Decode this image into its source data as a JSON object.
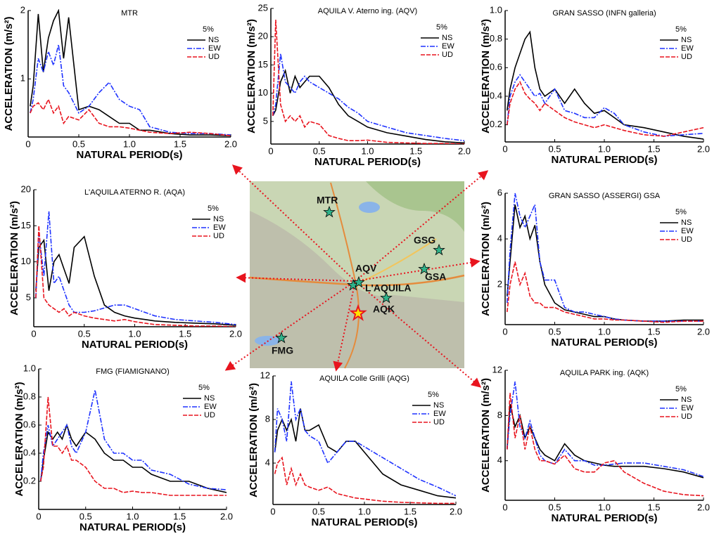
{
  "chart_data": [
    {
      "type": "line",
      "title": "MTR",
      "annotation": "5%",
      "x_label": "NATURAL PERIOD(s)",
      "y_label": "ACCELERATION (m/s²)",
      "x": [
        0.02,
        0.05,
        0.1,
        0.15,
        0.2,
        0.25,
        0.3,
        0.35,
        0.4,
        0.5,
        0.6,
        0.7,
        0.8,
        0.9,
        1.0,
        1.1,
        1.2,
        1.4,
        1.6,
        1.8,
        2.0
      ],
      "xlim": [
        0,
        2
      ],
      "xticks": [
        0,
        0.5,
        {
          "value": 1,
          "label": "1.0"
        },
        1.5,
        {
          "value": 2,
          "label": "2.0"
        }
      ],
      "ylim": [
        0.15,
        2
      ],
      "yticks": [
        1,
        2
      ],
      "series": [
        {
          "name": "NS",
          "color": "#000000",
          "style": "solid",
          "values": [
            0.6,
            0.9,
            1.95,
            1.1,
            1.6,
            1.85,
            2.0,
            1.3,
            1.9,
            0.55,
            0.6,
            0.55,
            0.45,
            0.35,
            0.35,
            0.25,
            0.25,
            0.2,
            0.18,
            0.18,
            0.17
          ]
        },
        {
          "name": "EW",
          "color": "#1e32ff",
          "style": "dashdot",
          "values": [
            0.5,
            0.7,
            1.3,
            1.1,
            1.4,
            1.2,
            1.5,
            0.9,
            0.8,
            0.5,
            0.6,
            0.8,
            0.95,
            0.7,
            0.6,
            0.55,
            0.3,
            0.22,
            0.2,
            0.2,
            0.18
          ]
        },
        {
          "name": "UD",
          "color": "#e8141e",
          "style": "dashed",
          "values": [
            0.5,
            0.6,
            0.65,
            0.55,
            0.7,
            0.5,
            0.6,
            0.35,
            0.45,
            0.4,
            0.55,
            0.35,
            0.3,
            0.3,
            0.28,
            0.25,
            0.22,
            0.2,
            0.22,
            0.2,
            0.17
          ]
        }
      ]
    },
    {
      "type": "line",
      "title": "AQUILA V. Aterno ing. (AQV)",
      "annotation": "5%",
      "x_label": "NATURAL PERIOD(s)",
      "y_label": "ACCELERATION (m/s²)",
      "x": [
        0.02,
        0.05,
        0.1,
        0.15,
        0.2,
        0.25,
        0.3,
        0.35,
        0.4,
        0.5,
        0.6,
        0.7,
        0.8,
        0.9,
        1.0,
        1.1,
        1.2,
        1.4,
        1.6,
        1.8,
        2.0
      ],
      "xlim": [
        0,
        2
      ],
      "xticks": [
        0,
        0.5,
        {
          "value": 1,
          "label": "1.0"
        },
        1.5,
        {
          "value": 2,
          "label": "2.0"
        }
      ],
      "ylim": [
        1,
        25
      ],
      "yticks": [
        5,
        10,
        15,
        20,
        25
      ],
      "series": [
        {
          "name": "NS",
          "color": "#000000",
          "style": "solid",
          "values": [
            6,
            7,
            12,
            14,
            10,
            13,
            11,
            12,
            13,
            13,
            11,
            8,
            6,
            5,
            4,
            3.5,
            3,
            2.4,
            1.8,
            1.4,
            1.2
          ]
        },
        {
          "name": "EW",
          "color": "#1e32ff",
          "style": "dashdot",
          "values": [
            6,
            8,
            17,
            12,
            11,
            10,
            12,
            13,
            12,
            11,
            10,
            9,
            7.5,
            6.5,
            5,
            4.5,
            4,
            3,
            2.5,
            2,
            1.6
          ]
        },
        {
          "name": "UD",
          "color": "#e8141e",
          "style": "dashed",
          "values": [
            6,
            23,
            8,
            5,
            6,
            5,
            6,
            4,
            5,
            4.5,
            2.5,
            2,
            1.6,
            1.6,
            1.7,
            1.5,
            1.3,
            1.2,
            1.1,
            1.1,
            1.0
          ]
        }
      ]
    },
    {
      "type": "line",
      "title": "GRAN SASSO (INFN galleria)",
      "annotation": "5%",
      "x_label": "NATURAL PERIOD(s)",
      "y_label": "ACCELERATION (m/s²)",
      "x": [
        0.02,
        0.05,
        0.1,
        0.15,
        0.2,
        0.25,
        0.3,
        0.35,
        0.4,
        0.5,
        0.6,
        0.7,
        0.8,
        0.9,
        1.0,
        1.1,
        1.2,
        1.4,
        1.6,
        1.8,
        2.0
      ],
      "xlim": [
        0,
        2
      ],
      "xticks": [
        0,
        0.5,
        {
          "value": 1,
          "label": "1.0"
        },
        1.5,
        {
          "value": 2,
          "label": "2.0"
        }
      ],
      "ylim": [
        0.08,
        1
      ],
      "yticks": [
        0.2,
        0.4,
        0.6,
        0.8,
        {
          "value": 1,
          "label": "1.0"
        }
      ],
      "series": [
        {
          "name": "NS",
          "color": "#000000",
          "style": "solid",
          "values": [
            0.3,
            0.45,
            0.6,
            0.7,
            0.8,
            0.85,
            0.6,
            0.45,
            0.4,
            0.45,
            0.35,
            0.45,
            0.35,
            0.28,
            0.3,
            0.25,
            0.2,
            0.18,
            0.15,
            0.12,
            0.1
          ]
        },
        {
          "name": "EW",
          "color": "#1e32ff",
          "style": "dashdot",
          "values": [
            0.2,
            0.4,
            0.5,
            0.55,
            0.5,
            0.45,
            0.4,
            0.42,
            0.35,
            0.45,
            0.3,
            0.28,
            0.25,
            0.25,
            0.32,
            0.28,
            0.2,
            0.15,
            0.12,
            0.13,
            0.14
          ]
        },
        {
          "name": "UD",
          "color": "#e8141e",
          "style": "dashed",
          "values": [
            0.2,
            0.35,
            0.45,
            0.5,
            0.42,
            0.38,
            0.35,
            0.3,
            0.35,
            0.3,
            0.25,
            0.22,
            0.2,
            0.18,
            0.2,
            0.18,
            0.16,
            0.13,
            0.12,
            0.15,
            0.18
          ]
        }
      ]
    },
    {
      "type": "line",
      "title": "L'AQUILA ATERNO R. (AQA)",
      "annotation": "5%",
      "x_label": "NATURAL PERIOD(s)",
      "y_label": "ACCELERATION (m/s²)",
      "x": [
        0.02,
        0.05,
        0.1,
        0.15,
        0.2,
        0.25,
        0.3,
        0.35,
        0.4,
        0.5,
        0.6,
        0.7,
        0.8,
        0.9,
        1.0,
        1.1,
        1.2,
        1.4,
        1.6,
        1.8,
        2.0
      ],
      "xlim": [
        0,
        2
      ],
      "xticks": [
        0,
        0.5,
        {
          "value": 1,
          "label": "1.0"
        },
        1.5,
        {
          "value": 2,
          "label": "2.0"
        }
      ],
      "ylim": [
        1,
        20
      ],
      "yticks": [
        5,
        10,
        15,
        20
      ],
      "series": [
        {
          "name": "NS",
          "color": "#000000",
          "style": "solid",
          "values": [
            6,
            12,
            13,
            6,
            10,
            11,
            9,
            7,
            12,
            13.5,
            8,
            4,
            3,
            2.5,
            2.2,
            2,
            1.8,
            1.6,
            1.5,
            1.4,
            1.2
          ]
        },
        {
          "name": "EW",
          "color": "#1e32ff",
          "style": "dashdot",
          "values": [
            5,
            14,
            8,
            17,
            7,
            8,
            6,
            4,
            3,
            3,
            3.2,
            3.6,
            4,
            4,
            3.5,
            3,
            2.5,
            2,
            1.8,
            1.6,
            1.3
          ]
        },
        {
          "name": "UD",
          "color": "#e8141e",
          "style": "dashed",
          "values": [
            5,
            15,
            5,
            4,
            3.5,
            3,
            3.5,
            2.5,
            3,
            2.5,
            2.2,
            2,
            1.8,
            2,
            1.7,
            1.5,
            1.3,
            1.2,
            1.1,
            1.1,
            1.0
          ]
        }
      ]
    },
    {
      "type": "line",
      "title": "GRAN SASSO (ASSERGI) GSA",
      "annotation": "5%",
      "x_label": "NATURAL PERIOD(s)",
      "y_label": "ACCELERATION (m/s²)",
      "x": [
        0.02,
        0.05,
        0.1,
        0.15,
        0.2,
        0.25,
        0.3,
        0.35,
        0.4,
        0.5,
        0.6,
        0.7,
        0.8,
        0.9,
        1.0,
        1.1,
        1.2,
        1.4,
        1.6,
        1.8,
        2.0
      ],
      "xlim": [
        0,
        2
      ],
      "xticks": [
        0,
        0.5,
        {
          "value": 1,
          "label": "1.0"
        },
        1.5,
        {
          "value": 2,
          "label": "2.0"
        }
      ],
      "ylim": [
        0.25,
        6
      ],
      "yticks": [
        2,
        4,
        6
      ],
      "series": [
        {
          "name": "NS",
          "color": "#000000",
          "style": "solid",
          "values": [
            1.5,
            3,
            5.5,
            4.5,
            5,
            4,
            4.6,
            3,
            2,
            1.2,
            0.9,
            0.8,
            0.7,
            0.6,
            0.6,
            0.5,
            0.45,
            0.4,
            0.4,
            0.45,
            0.45
          ]
        },
        {
          "name": "EW",
          "color": "#1e32ff",
          "style": "dashdot",
          "values": [
            1.2,
            3.5,
            6,
            5,
            4.5,
            5,
            5.5,
            3,
            2.2,
            2.2,
            1,
            0.8,
            0.8,
            0.7,
            0.6,
            0.5,
            0.45,
            0.4,
            0.4,
            0.4,
            0.4
          ]
        },
        {
          "name": "UD",
          "color": "#e8141e",
          "style": "dashed",
          "values": [
            0.8,
            2,
            3,
            2,
            2.5,
            1.5,
            1.2,
            1.2,
            1,
            1,
            0.8,
            0.7,
            0.6,
            0.5,
            0.5,
            0.45,
            0.45,
            0.4,
            0.35,
            0.4,
            0.4
          ]
        }
      ]
    },
    {
      "type": "line",
      "title": "FMG (FIAMIGNANO)",
      "annotation": "5%",
      "x_label": "NATURAL PERIOD(s)",
      "y_label": "ACCELERATION (m/s²)",
      "x": [
        0.02,
        0.05,
        0.1,
        0.15,
        0.2,
        0.25,
        0.3,
        0.35,
        0.4,
        0.5,
        0.6,
        0.7,
        0.8,
        0.9,
        1.0,
        1.1,
        1.2,
        1.4,
        1.6,
        1.8,
        2.0
      ],
      "xlim": [
        0,
        2
      ],
      "xticks": [
        0,
        0.5,
        {
          "value": 1,
          "label": "1.0"
        },
        1.5,
        {
          "value": 2,
          "label": "2.0"
        }
      ],
      "ylim": [
        0,
        1
      ],
      "yticks": [
        0.2,
        0.4,
        0.6,
        0.8,
        {
          "value": 1,
          "label": "1.0"
        }
      ],
      "series": [
        {
          "name": "NS",
          "color": "#000000",
          "style": "solid",
          "values": [
            0.2,
            0.35,
            0.55,
            0.5,
            0.55,
            0.5,
            0.6,
            0.5,
            0.45,
            0.55,
            0.5,
            0.4,
            0.35,
            0.35,
            0.3,
            0.3,
            0.25,
            0.2,
            0.2,
            0.15,
            0.12
          ]
        },
        {
          "name": "EW",
          "color": "#1e32ff",
          "style": "dashdot",
          "values": [
            0.2,
            0.4,
            0.6,
            0.45,
            0.5,
            0.55,
            0.6,
            0.45,
            0.4,
            0.55,
            0.85,
            0.5,
            0.4,
            0.4,
            0.35,
            0.35,
            0.28,
            0.25,
            0.18,
            0.15,
            0.14
          ]
        },
        {
          "name": "UD",
          "color": "#e8141e",
          "style": "dashed",
          "values": [
            0.2,
            0.3,
            0.8,
            0.45,
            0.45,
            0.4,
            0.45,
            0.35,
            0.35,
            0.3,
            0.2,
            0.15,
            0.15,
            0.12,
            0.13,
            0.12,
            0.12,
            0.1,
            0.1,
            0.1,
            0.1
          ]
        }
      ]
    },
    {
      "type": "line",
      "title": "AQUILA Colle Grilli (AQG)",
      "annotation": "5%",
      "x_label": "NATURAL PERIOD(s)",
      "y_label": "ACCELERATION (m/s²)",
      "x": [
        0.02,
        0.05,
        0.1,
        0.15,
        0.2,
        0.25,
        0.3,
        0.35,
        0.4,
        0.5,
        0.6,
        0.7,
        0.8,
        0.9,
        1.0,
        1.1,
        1.2,
        1.4,
        1.6,
        1.8,
        2.0
      ],
      "xlim": [
        0,
        2
      ],
      "xticks": [
        0,
        0.5,
        {
          "value": 1,
          "label": "1.0"
        },
        1.5,
        {
          "value": 2,
          "label": "2.0"
        }
      ],
      "ylim": [
        0.2,
        12
      ],
      "yticks": [
        4,
        8,
        12
      ],
      "series": [
        {
          "name": "NS",
          "color": "#000000",
          "style": "solid",
          "values": [
            5,
            7,
            8,
            7,
            8,
            6,
            9,
            7,
            7,
            7.5,
            5.5,
            5,
            6,
            6,
            5,
            4,
            3,
            2,
            1.5,
            1,
            0.8
          ]
        },
        {
          "name": "EW",
          "color": "#1e32ff",
          "style": "dashdot",
          "values": [
            5,
            9,
            8,
            6,
            11.5,
            8,
            9,
            7,
            6.5,
            6,
            4,
            5,
            6,
            6,
            5.5,
            5,
            4.5,
            3.5,
            2.5,
            1.8,
            1
          ]
        },
        {
          "name": "UD",
          "color": "#e8141e",
          "style": "dashed",
          "values": [
            3,
            4,
            4.5,
            2,
            3.5,
            2,
            3,
            2,
            1.8,
            1.5,
            1.8,
            1.2,
            1,
            0.8,
            0.7,
            0.6,
            0.5,
            0.4,
            0.35,
            0.3,
            0.3
          ]
        }
      ]
    },
    {
      "type": "line",
      "title": "AQUILA PARK ing. (AQK)",
      "annotation": "5%",
      "x_label": "NATURAL PERIOD(s)",
      "y_label": "ACCELERATION (m/s²)",
      "x": [
        0.02,
        0.05,
        0.1,
        0.15,
        0.2,
        0.25,
        0.3,
        0.35,
        0.4,
        0.5,
        0.6,
        0.7,
        0.8,
        0.9,
        1.0,
        1.1,
        1.2,
        1.4,
        1.6,
        1.8,
        2.0
      ],
      "xlim": [
        0,
        2
      ],
      "xticks": [
        0,
        0.5,
        {
          "value": 1,
          "label": "1.0"
        },
        1.5,
        {
          "value": 2,
          "label": "2.0"
        }
      ],
      "ylim": [
        0.5,
        12
      ],
      "yticks": [
        4,
        8,
        12
      ],
      "series": [
        {
          "name": "NS",
          "color": "#000000",
          "style": "solid",
          "values": [
            5,
            9,
            7,
            8,
            6,
            7,
            6,
            5,
            4.5,
            4,
            5.5,
            4.5,
            4,
            3.8,
            3.6,
            3.5,
            3.5,
            3.5,
            3.3,
            3,
            2.5
          ]
        },
        {
          "name": "EW",
          "color": "#1e32ff",
          "style": "dashdot",
          "values": [
            5,
            8,
            11,
            7,
            6,
            7.5,
            6,
            4.5,
            4,
            3.7,
            5,
            4,
            4,
            3.6,
            3.6,
            3.7,
            3.8,
            3.8,
            3.5,
            3.2,
            2.6
          ]
        },
        {
          "name": "UD",
          "color": "#e8141e",
          "style": "dashed",
          "values": [
            5,
            10,
            6,
            8,
            5,
            7,
            5,
            4,
            4,
            3.7,
            4.5,
            3.3,
            3,
            3,
            3.8,
            4,
            3,
            2,
            1.3,
            1,
            0.9
          ]
        }
      ]
    }
  ],
  "map": {
    "labels": [
      "MTR",
      "AQV",
      "GSG",
      "GSA",
      "L'AQUILA",
      "AQK",
      "FMG"
    ]
  }
}
